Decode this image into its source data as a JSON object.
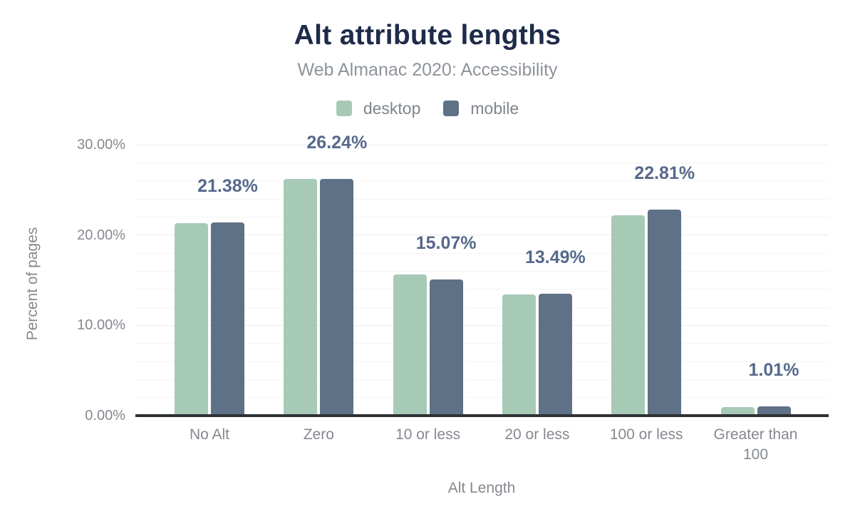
{
  "figure": {
    "title": "Alt attribute lengths",
    "subtitle": "Web Almanac 2020: Accessibility"
  },
  "chart_data": {
    "type": "bar",
    "title": "Alt attribute lengths",
    "subtitle": "Web Almanac 2020: Accessibility",
    "xlabel": "Alt Length",
    "ylabel": "Percent of pages",
    "categories": [
      "No Alt",
      "Zero",
      "10 or less",
      "20 or less",
      "100 or less",
      "Greater than 100"
    ],
    "series": [
      {
        "name": "desktop",
        "color": "#a7cab6",
        "values": [
          21.3,
          26.2,
          15.6,
          13.4,
          22.2,
          0.95
        ]
      },
      {
        "name": "mobile",
        "color": "#5e7186",
        "values": [
          21.38,
          26.24,
          15.07,
          13.49,
          22.81,
          1.01
        ],
        "data_labels": [
          "21.38%",
          "26.24%",
          "15.07%",
          "13.49%",
          "22.81%",
          "1.01%"
        ]
      }
    ],
    "ylim": [
      0,
      30
    ],
    "yticks": [
      {
        "value": 0,
        "label": "0.00%"
      },
      {
        "value": 10,
        "label": "10.00%"
      },
      {
        "value": 20,
        "label": "20.00%"
      },
      {
        "value": 30,
        "label": "30.00%"
      }
    ],
    "grid": {
      "minor_step_pct": 2,
      "major_step_pct": 10,
      "shown": true
    },
    "legend_position": "top",
    "data_label_series": "mobile",
    "colors": {
      "title": "#1e2b49",
      "subtitle": "#8e939b",
      "data_label": "#56698b",
      "axis_text": "#85898f",
      "axis_line": "#2f3133",
      "desktop": "#a7cab6",
      "mobile": "#5e7186"
    }
  }
}
